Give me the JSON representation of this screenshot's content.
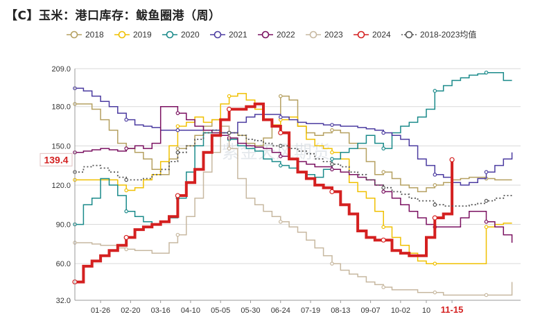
{
  "title": "【C】玉米：港口库存：鲅鱼圈港（周）",
  "watermark": "紫金天风期货",
  "chart_data": {
    "type": "line",
    "ylim": [
      32,
      209
    ],
    "yticks": [
      "209.0",
      "180.0",
      "150.0",
      "120.0",
      "90.0",
      "60.0",
      "32.0"
    ],
    "ytick_values": [
      209,
      180,
      150,
      120,
      90,
      60,
      32
    ],
    "xticks": [
      "01-26",
      "02-20",
      "03-16",
      "04-10",
      "05-05",
      "05-30",
      "06-24",
      "07-19",
      "08-13",
      "09-07",
      "10-02",
      "10",
      "11-15"
    ],
    "xtick_weeks": [
      3,
      6.5,
      10,
      13.5,
      17,
      20.5,
      24,
      27.5,
      31,
      34.5,
      38,
      41,
      44
    ],
    "xlim_weeks": [
      0,
      52
    ],
    "highlight_xtick": "11-15",
    "latest_value_label": "139.4",
    "legend_position": "top",
    "grid": "horizontal",
    "series": [
      {
        "name": "2018",
        "color": "#b5a060",
        "values": [
          182,
          182,
          178,
          170,
          162,
          152,
          148,
          145,
          140,
          132,
          128,
          140,
          148,
          150,
          158,
          165,
          170,
          165,
          160,
          158,
          152,
          150,
          156,
          165,
          188,
          185,
          165,
          160,
          158,
          160,
          162,
          160,
          152,
          148,
          138,
          128,
          130,
          125,
          120,
          118,
          115,
          118,
          120,
          122,
          124,
          125,
          126,
          126,
          125,
          124,
          124,
          124
        ]
      },
      {
        "name": "2019",
        "color": "#f0c000",
        "values": [
          124,
          124,
          124,
          124,
          124,
          120,
          116,
          118,
          124,
          128,
          138,
          150,
          165,
          168,
          172,
          168,
          170,
          182,
          188,
          190,
          185,
          178,
          170,
          166,
          170,
          172,
          165,
          155,
          150,
          148,
          145,
          140,
          122,
          115,
          110,
          100,
          88,
          80,
          74,
          68,
          62,
          60,
          60,
          60,
          60,
          60,
          60,
          60,
          88,
          90,
          91,
          91
        ]
      },
      {
        "name": "2020",
        "color": "#1a8a8a",
        "values": [
          90,
          105,
          110,
          125,
          120,
          112,
          100,
          96,
          92,
          90,
          92,
          95,
          110,
          130,
          150,
          160,
          162,
          160,
          155,
          150,
          148,
          146,
          140,
          138,
          135,
          133,
          130,
          128,
          126,
          132,
          140,
          145,
          148,
          152,
          158,
          152,
          148,
          160,
          165,
          168,
          172,
          178,
          192,
          196,
          200,
          202,
          204,
          205,
          206,
          206,
          200,
          200
        ]
      },
      {
        "name": "2021",
        "color": "#4b3ba0",
        "values": [
          194,
          192,
          188,
          184,
          180,
          175,
          170,
          166,
          165,
          164,
          162,
          162,
          162,
          162,
          162,
          162,
          162,
          160,
          160,
          168,
          172,
          174,
          174,
          174,
          172,
          170,
          168,
          167,
          167,
          166,
          166,
          165,
          165,
          164,
          163,
          162,
          160,
          158,
          155,
          150,
          140,
          135,
          128,
          126,
          122,
          120,
          122,
          125,
          130,
          135,
          140,
          145
        ]
      },
      {
        "name": "2022",
        "color": "#7a1060",
        "values": [
          145,
          146,
          147,
          148,
          147,
          146,
          148,
          150,
          148,
          152,
          180,
          180,
          175,
          170,
          165,
          162,
          160,
          158,
          156,
          152,
          150,
          149,
          148,
          145,
          142,
          140,
          138,
          136,
          134,
          134,
          132,
          130,
          128,
          126,
          124,
          120,
          115,
          110,
          105,
          100,
          95,
          90,
          88,
          88,
          88,
          95,
          100,
          100,
          92,
          88,
          82,
          76
        ]
      },
      {
        "name": "2023",
        "color": "#c7b8a0",
        "values": [
          76,
          76,
          75,
          74,
          74,
          72,
          71,
          70,
          70,
          68,
          68,
          76,
          82,
          96,
          110,
          130,
          145,
          165,
          148,
          125,
          110,
          105,
          100,
          96,
          92,
          88,
          84,
          78,
          72,
          66,
          60,
          55,
          52,
          50,
          46,
          44,
          42,
          40,
          40,
          40,
          38,
          38,
          38,
          36,
          36,
          36,
          36,
          36,
          36,
          36,
          36,
          46
        ]
      },
      {
        "name": "2024",
        "color": "#d42020",
        "values": [
          46,
          58,
          62,
          66,
          70,
          74,
          80,
          86,
          88,
          90,
          92,
          96,
          112,
          122,
          132,
          145,
          158,
          170,
          178,
          178,
          180,
          182,
          170,
          165,
          160,
          140,
          130,
          125,
          120,
          118,
          115,
          105,
          98,
          85,
          80,
          78,
          78,
          70,
          68,
          66,
          66,
          80,
          95,
          98,
          139.4
        ]
      },
      {
        "name": "2018-2023均值",
        "color": "#555555",
        "values": [
          130,
          134,
          135,
          133,
          130,
          126,
          124,
          124,
          125,
          128,
          132,
          138,
          145,
          150,
          155,
          160,
          162,
          160,
          160,
          158,
          155,
          154,
          152,
          150,
          150,
          148,
          146,
          144,
          140,
          138,
          136,
          134,
          130,
          128,
          124,
          120,
          118,
          115,
          113,
          110,
          108,
          108,
          105,
          104,
          104,
          104,
          105,
          106,
          108,
          110,
          112,
          113
        ]
      }
    ]
  }
}
